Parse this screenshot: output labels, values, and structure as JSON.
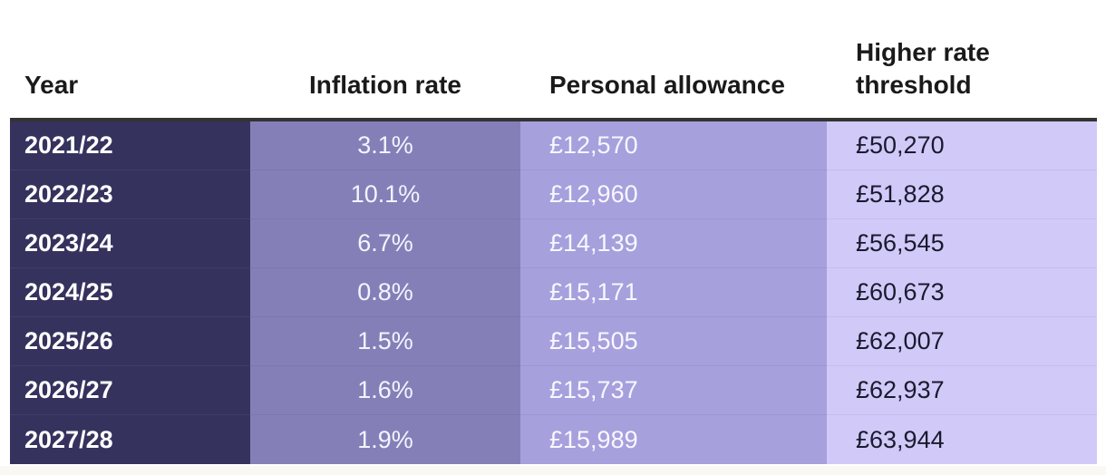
{
  "chart_data": {
    "type": "table",
    "columns": [
      "Year",
      "Inflation rate",
      "Personal allowance",
      "Higher rate threshold"
    ],
    "header_lines": {
      "year": [
        "Year"
      ],
      "inflation": [
        "Inflation rate"
      ],
      "allowance": [
        "Personal allowance"
      ],
      "threshold": [
        "Higher rate",
        "threshold"
      ]
    },
    "rows": [
      {
        "year": "2021/22",
        "inflation": "3.1%",
        "allowance": "£12,570",
        "threshold": "£50,270"
      },
      {
        "year": "2022/23",
        "inflation": "10.1%",
        "allowance": "£12,960",
        "threshold": "£51,828"
      },
      {
        "year": "2023/24",
        "inflation": "6.7%",
        "allowance": "£14,139",
        "threshold": "£56,545"
      },
      {
        "year": "2024/25",
        "inflation": "0.8%",
        "allowance": "£15,171",
        "threshold": "£60,673"
      },
      {
        "year": "2025/26",
        "inflation": "1.5%",
        "allowance": "£15,505",
        "threshold": "£62,007"
      },
      {
        "year": "2026/27",
        "inflation": "1.6%",
        "allowance": "£15,737",
        "threshold": "£62,937"
      },
      {
        "year": "2027/28",
        "inflation": "1.9%",
        "allowance": "£15,989",
        "threshold": "£63,944"
      }
    ]
  },
  "colors": {
    "year_col": "#35325e",
    "inflation_col": "#8480b7",
    "allowance_col": "#a6a0dd",
    "threshold_col": "#d1caf9",
    "header_rule": "#333333"
  }
}
